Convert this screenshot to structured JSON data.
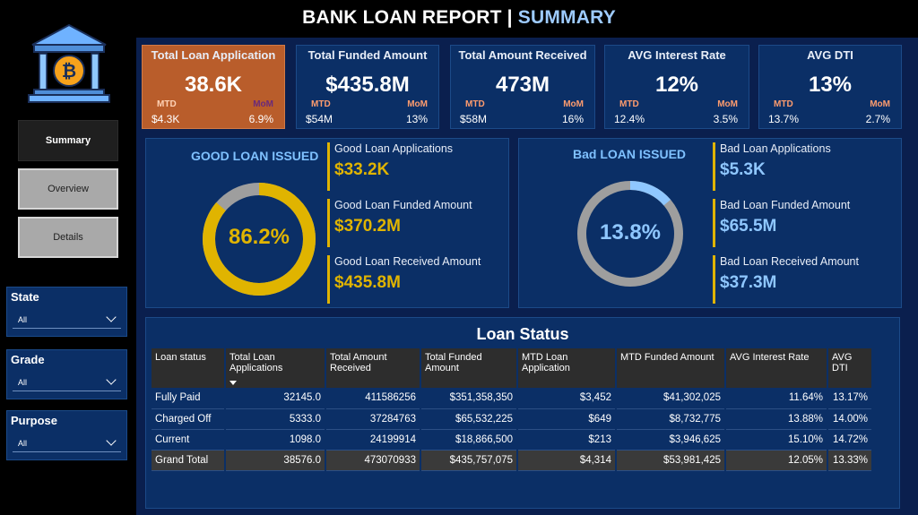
{
  "header": {
    "title_main": "BANK LOAN REPORT | ",
    "title_accent": "SUMMARY"
  },
  "sidebar": {
    "logo_icon": "bank-bitcoin-icon",
    "nav": [
      {
        "label": "Summary",
        "active": true
      },
      {
        "label": "Overview",
        "active": false
      },
      {
        "label": "Details",
        "active": false
      }
    ],
    "filters": [
      {
        "label": "State",
        "value": "All"
      },
      {
        "label": "Grade",
        "value": "All"
      },
      {
        "label": "Purpose",
        "value": "All"
      }
    ]
  },
  "kpis": [
    {
      "title": "Total Loan Application",
      "value": "38.6K",
      "mtd_label": "MTD",
      "mtd_value": "$4.3K",
      "mom_label": "MoM",
      "mom_value": "6.9%"
    },
    {
      "title": "Total Funded Amount",
      "value": "$435.8M",
      "mtd_label": "MTD",
      "mtd_value": "$54M",
      "mom_label": "MoM",
      "mom_value": "13%"
    },
    {
      "title": "Total Amount Received",
      "value": "473M",
      "mtd_label": "MTD",
      "mtd_value": "$58M",
      "mom_label": "MoM",
      "mom_value": "16%"
    },
    {
      "title": "AVG Interest Rate",
      "value": "12%",
      "mtd_label": "MTD",
      "mtd_value": "12.4%",
      "mom_label": "MoM",
      "mom_value": "3.5%"
    },
    {
      "title": "AVG DTI",
      "value": "13%",
      "mtd_label": "MTD",
      "mtd_value": "13.7%",
      "mom_label": "MoM",
      "mom_value": "2.7%"
    }
  ],
  "good_loan": {
    "title": "GOOD LOAN ISSUED",
    "percent_label": "86.2%",
    "percent": 86.2,
    "color": "#e0b400",
    "rest_color": "#9e9e9e",
    "metrics": [
      {
        "label": "Good Loan Applications",
        "value": "$33.2K"
      },
      {
        "label": "Good Loan Funded Amount",
        "value": "$370.2M"
      },
      {
        "label": "Good Loan Received Amount",
        "value": "$435.8M"
      }
    ]
  },
  "bad_loan": {
    "title": "Bad LOAN ISSUED",
    "percent_label": "13.8%",
    "percent": 13.8,
    "color": "#8fc7ff",
    "rest_color": "#9e9e9e",
    "metrics": [
      {
        "label": "Bad Loan Applications",
        "value": "$5.3K"
      },
      {
        "label": "Bad Loan Funded Amount",
        "value": "$65.5M"
      },
      {
        "label": "Bad Loan Received Amount",
        "value": "$37.3M"
      }
    ]
  },
  "loan_status": {
    "title": "Loan Status",
    "columns": [
      "Loan status",
      "Total Loan Applications",
      "Total Amount Received",
      "Total Funded Amount",
      "MTD Loan Application",
      "MTD Funded Amount",
      "AVG Interest Rate",
      "AVG DTI"
    ],
    "rows": [
      [
        "Fully Paid",
        "32145.0",
        "411586256",
        "$351,358,350",
        "$3,452",
        "$41,302,025",
        "11.64%",
        "13.17%"
      ],
      [
        "Charged Off",
        "5333.0",
        "37284763",
        "$65,532,225",
        "$649",
        "$8,732,775",
        "13.88%",
        "14.00%"
      ],
      [
        "Current",
        "1098.0",
        "24199914",
        "$18,866,500",
        "$213",
        "$3,946,625",
        "15.10%",
        "14.72%"
      ]
    ],
    "total": [
      "Grand Total",
      "38576.0",
      "473070933",
      "$435,757,075",
      "$4,314",
      "$53,981,425",
      "12.05%",
      "13.33%"
    ]
  }
}
